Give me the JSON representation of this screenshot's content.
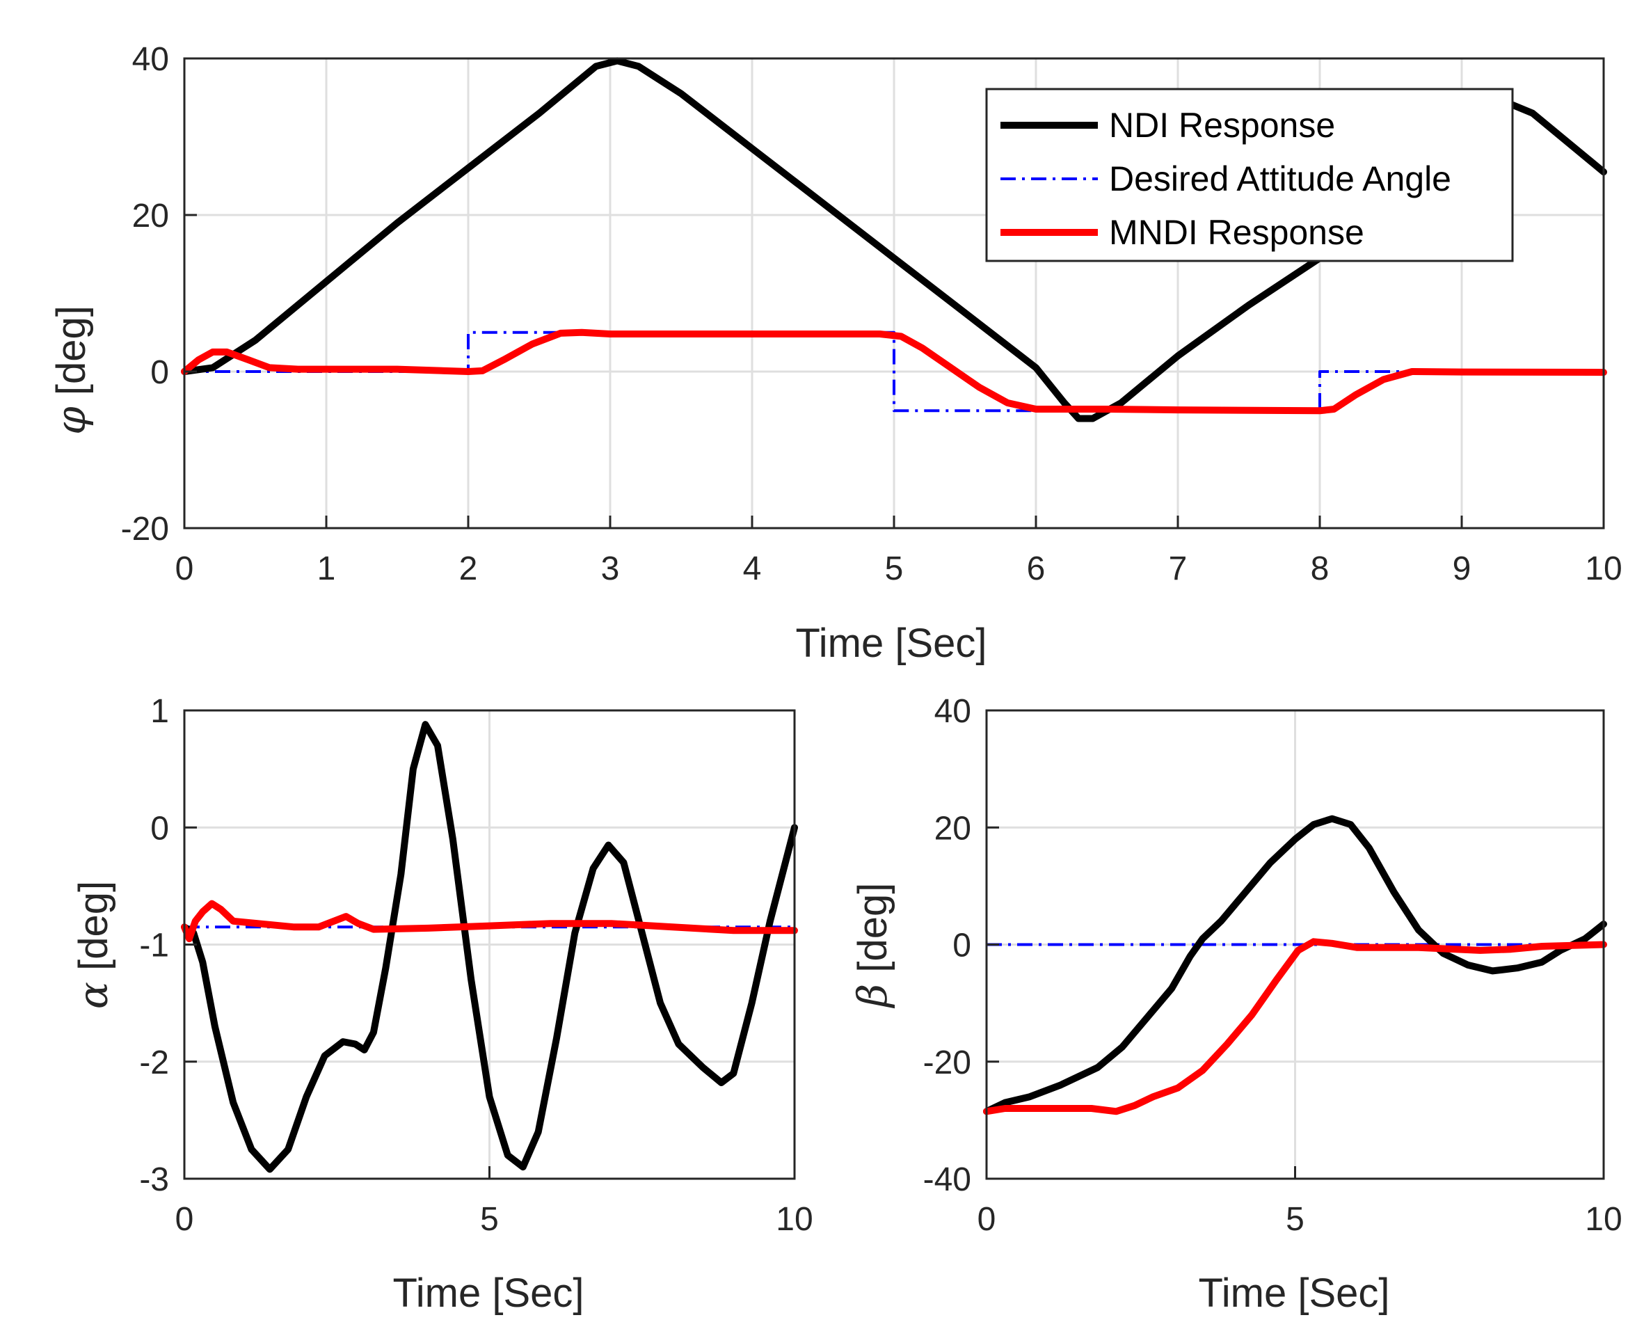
{
  "colors": {
    "ndi": "#000000",
    "desired": "#0000ff",
    "mndi": "#ff0000",
    "grid": "#dfdfdf",
    "axis": "#262626"
  },
  "legend": {
    "entries": [
      "NDI Response",
      "Desired Attitude Angle",
      "MNDI Response"
    ]
  },
  "chart_data": [
    {
      "id": "phi",
      "type": "line",
      "xlabel": "Time  [Sec]",
      "ylabel_symbol": "φ",
      "ylabel_unit": "[deg]",
      "xlim": [
        0,
        10
      ],
      "ylim": [
        -20,
        40
      ],
      "xticks": [
        0,
        1,
        2,
        3,
        4,
        5,
        6,
        7,
        8,
        9,
        10
      ],
      "yticks": [
        -20,
        0,
        20,
        40
      ],
      "grid": true,
      "legend_position": "top-right",
      "series": [
        {
          "name": "NDI Response",
          "style": "solid",
          "points": [
            [
              0,
              0
            ],
            [
              0.2,
              0.5
            ],
            [
              0.5,
              4
            ],
            [
              1,
              11.5
            ],
            [
              1.5,
              19
            ],
            [
              2,
              26
            ],
            [
              2.5,
              33
            ],
            [
              2.9,
              39
            ],
            [
              3.05,
              39.7
            ],
            [
              3.2,
              39
            ],
            [
              3.5,
              35.5
            ],
            [
              4,
              28.5
            ],
            [
              4.5,
              21.5
            ],
            [
              5,
              14.5
            ],
            [
              5.5,
              7.5
            ],
            [
              6,
              0.5
            ],
            [
              6.2,
              -4
            ],
            [
              6.3,
              -6
            ],
            [
              6.4,
              -6
            ],
            [
              6.6,
              -4
            ],
            [
              7,
              2
            ],
            [
              7.5,
              8.5
            ],
            [
              8,
              14.5
            ],
            [
              8.15,
              16.5
            ],
            [
              9.3,
              34.5
            ],
            [
              9.5,
              33
            ],
            [
              10,
              25.5
            ]
          ]
        },
        {
          "name": "Desired Attitude Angle",
          "style": "dashdot",
          "points": [
            [
              0,
              0
            ],
            [
              2,
              0
            ],
            [
              2,
              5
            ],
            [
              5,
              5
            ],
            [
              5,
              -5
            ],
            [
              8,
              -5
            ],
            [
              8,
              0
            ],
            [
              10,
              0
            ]
          ]
        },
        {
          "name": "MNDI Response",
          "style": "solid",
          "points": [
            [
              0,
              0
            ],
            [
              0.1,
              1.5
            ],
            [
              0.2,
              2.5
            ],
            [
              0.3,
              2.5
            ],
            [
              0.45,
              1.5
            ],
            [
              0.6,
              0.5
            ],
            [
              0.8,
              0.3
            ],
            [
              1.5,
              0.3
            ],
            [
              2,
              0
            ],
            [
              2.1,
              0.1
            ],
            [
              2.25,
              1.5
            ],
            [
              2.45,
              3.5
            ],
            [
              2.65,
              4.9
            ],
            [
              2.8,
              5
            ],
            [
              3,
              4.8
            ],
            [
              4,
              4.8
            ],
            [
              4.9,
              4.8
            ],
            [
              5.05,
              4.5
            ],
            [
              5.2,
              3
            ],
            [
              5.4,
              0.5
            ],
            [
              5.6,
              -2
            ],
            [
              5.8,
              -4
            ],
            [
              6,
              -4.8
            ],
            [
              6.5,
              -4.8
            ],
            [
              7,
              -4.9
            ],
            [
              8,
              -5
            ],
            [
              8.1,
              -4.8
            ],
            [
              8.25,
              -3
            ],
            [
              8.45,
              -1
            ],
            [
              8.65,
              0
            ],
            [
              9,
              -0.05
            ],
            [
              10,
              -0.1
            ]
          ]
        }
      ]
    },
    {
      "id": "alpha",
      "type": "line",
      "xlabel": "Time  [Sec]",
      "ylabel_symbol": "α",
      "ylabel_unit": "[deg]",
      "xlim": [
        0,
        10
      ],
      "ylim": [
        -3,
        1
      ],
      "xticks": [
        0,
        5,
        10
      ],
      "yticks": [
        -3,
        -2,
        -1,
        0,
        1
      ],
      "grid": true,
      "series": [
        {
          "name": "NDI Response",
          "style": "solid",
          "points": [
            [
              0,
              -0.85
            ],
            [
              0.15,
              -0.9
            ],
            [
              0.3,
              -1.15
            ],
            [
              0.5,
              -1.7
            ],
            [
              0.8,
              -2.35
            ],
            [
              1.1,
              -2.75
            ],
            [
              1.4,
              -2.92
            ],
            [
              1.7,
              -2.75
            ],
            [
              2,
              -2.3
            ],
            [
              2.3,
              -1.95
            ],
            [
              2.6,
              -1.83
            ],
            [
              2.8,
              -1.85
            ],
            [
              2.95,
              -1.9
            ],
            [
              3.1,
              -1.75
            ],
            [
              3.3,
              -1.2
            ],
            [
              3.55,
              -0.4
            ],
            [
              3.75,
              0.5
            ],
            [
              3.95,
              0.88
            ],
            [
              4.15,
              0.7
            ],
            [
              4.4,
              -0.1
            ],
            [
              4.7,
              -1.3
            ],
            [
              5,
              -2.3
            ],
            [
              5.3,
              -2.8
            ],
            [
              5.55,
              -2.9
            ],
            [
              5.8,
              -2.6
            ],
            [
              6.1,
              -1.8
            ],
            [
              6.4,
              -0.9
            ],
            [
              6.7,
              -0.35
            ],
            [
              6.95,
              -0.15
            ],
            [
              7.2,
              -0.3
            ],
            [
              7.5,
              -0.9
            ],
            [
              7.8,
              -1.5
            ],
            [
              8.1,
              -1.85
            ],
            [
              8.5,
              -2.05
            ],
            [
              8.8,
              -2.18
            ],
            [
              9,
              -2.1
            ],
            [
              9.3,
              -1.5
            ],
            [
              9.6,
              -0.8
            ],
            [
              10,
              0
            ]
          ]
        },
        {
          "name": "Desired Attitude Angle",
          "style": "dashdot",
          "points": [
            [
              0,
              -0.85
            ],
            [
              10,
              -0.85
            ]
          ]
        },
        {
          "name": "MNDI Response",
          "style": "solid",
          "points": [
            [
              0,
              -0.85
            ],
            [
              0.08,
              -0.95
            ],
            [
              0.18,
              -0.8
            ],
            [
              0.3,
              -0.72
            ],
            [
              0.45,
              -0.65
            ],
            [
              0.6,
              -0.7
            ],
            [
              0.8,
              -0.8
            ],
            [
              1.2,
              -0.82
            ],
            [
              1.8,
              -0.85
            ],
            [
              2.2,
              -0.85
            ],
            [
              2.45,
              -0.8
            ],
            [
              2.65,
              -0.76
            ],
            [
              2.85,
              -0.82
            ],
            [
              3.1,
              -0.87
            ],
            [
              4,
              -0.86
            ],
            [
              5,
              -0.84
            ],
            [
              6,
              -0.82
            ],
            [
              7,
              -0.82
            ],
            [
              8,
              -0.85
            ],
            [
              9,
              -0.88
            ],
            [
              10,
              -0.88
            ]
          ]
        }
      ]
    },
    {
      "id": "beta",
      "type": "line",
      "xlabel": "Time  [Sec]",
      "ylabel_symbol": "β",
      "ylabel_unit": "[deg]",
      "xlim": [
        0,
        10
      ],
      "ylim": [
        -40,
        40
      ],
      "xticks": [
        0,
        5,
        10
      ],
      "yticks": [
        -40,
        -20,
        0,
        20,
        40
      ],
      "grid": true,
      "series": [
        {
          "name": "NDI Response",
          "style": "solid",
          "points": [
            [
              0,
              -28.5
            ],
            [
              0.3,
              -27
            ],
            [
              0.7,
              -26
            ],
            [
              1.2,
              -24
            ],
            [
              1.8,
              -21
            ],
            [
              2.2,
              -17.5
            ],
            [
              2.6,
              -12.5
            ],
            [
              3,
              -7.5
            ],
            [
              3.3,
              -2
            ],
            [
              3.5,
              1
            ],
            [
              3.8,
              4
            ],
            [
              4.2,
              9
            ],
            [
              4.6,
              14
            ],
            [
              5,
              18
            ],
            [
              5.3,
              20.5
            ],
            [
              5.6,
              21.5
            ],
            [
              5.9,
              20.5
            ],
            [
              6.2,
              16.5
            ],
            [
              6.6,
              9
            ],
            [
              7,
              2.5
            ],
            [
              7.4,
              -1.5
            ],
            [
              7.8,
              -3.5
            ],
            [
              8.2,
              -4.5
            ],
            [
              8.6,
              -4
            ],
            [
              9,
              -3
            ],
            [
              9.3,
              -1
            ],
            [
              9.7,
              1
            ],
            [
              10,
              3.5
            ]
          ]
        },
        {
          "name": "Desired Attitude Angle",
          "style": "dashdot",
          "points": [
            [
              0,
              0
            ],
            [
              10,
              0
            ]
          ]
        },
        {
          "name": "MNDI Response",
          "style": "solid",
          "points": [
            [
              0,
              -28.5
            ],
            [
              0.3,
              -28
            ],
            [
              1,
              -28
            ],
            [
              1.7,
              -28
            ],
            [
              2.1,
              -28.5
            ],
            [
              2.4,
              -27.5
            ],
            [
              2.7,
              -26
            ],
            [
              3.1,
              -24.5
            ],
            [
              3.5,
              -21.5
            ],
            [
              3.9,
              -17
            ],
            [
              4.3,
              -12
            ],
            [
              4.7,
              -6
            ],
            [
              5.05,
              -1
            ],
            [
              5.3,
              0.5
            ],
            [
              5.6,
              0.2
            ],
            [
              6,
              -0.5
            ],
            [
              7,
              -0.5
            ],
            [
              8,
              -1
            ],
            [
              8.5,
              -0.8
            ],
            [
              9,
              -0.3
            ],
            [
              10,
              0
            ]
          ]
        }
      ]
    }
  ]
}
